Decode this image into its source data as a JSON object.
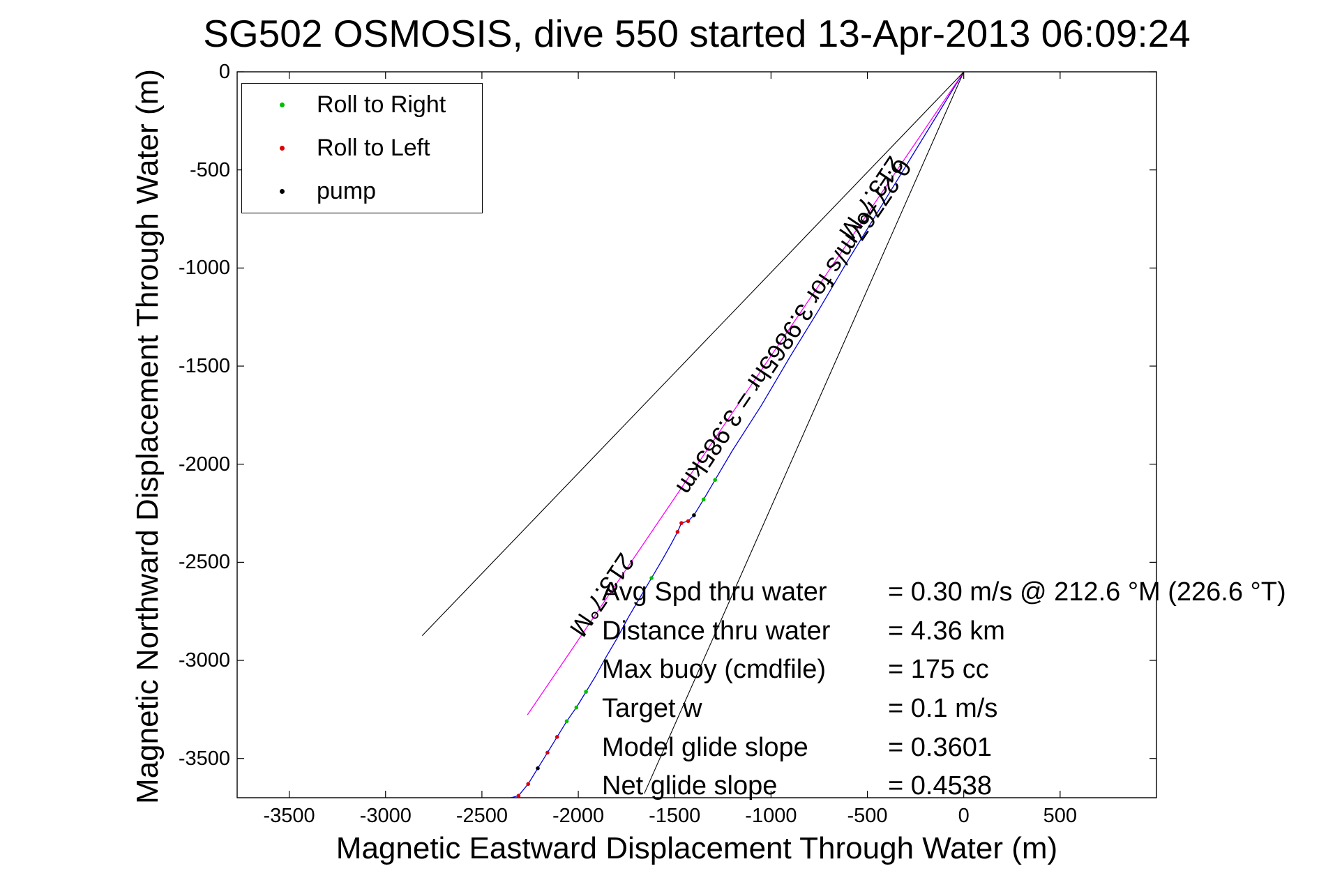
{
  "title": "SG502 OSMOSIS, dive 550 started 13-Apr-2013 06:09:24",
  "chart_data": {
    "type": "line",
    "title": "SG502 OSMOSIS, dive 550 started 13-Apr-2013 06:09:24",
    "xlabel": "Magnetic Eastward Displacement Through Water (m)",
    "ylabel": "Magnetic Northward Displacement Through Water (m)",
    "xlim": [
      -3770,
      1000
    ],
    "ylim": [
      -3700,
      0
    ],
    "grid": false,
    "legend_position": "top-left-inside",
    "xticks": [
      -3500,
      -3000,
      -2500,
      -2000,
      -1500,
      -1000,
      -500,
      0,
      500
    ],
    "yticks": [
      0,
      -500,
      -1000,
      -1500,
      -2000,
      -2500,
      -3000,
      -3500
    ],
    "legend": [
      {
        "label": "Roll to Right",
        "color": "#00bf00"
      },
      {
        "label": "Roll to Left",
        "color": "#e00000"
      },
      {
        "label": "pump",
        "color": "#000000"
      }
    ],
    "series": [
      {
        "name": "track-through-water",
        "color": "#0000e0",
        "width": 1.3,
        "points": [
          [
            0,
            0
          ],
          [
            -150,
            -240
          ],
          [
            -300,
            -480
          ],
          [
            -450,
            -720
          ],
          [
            -600,
            -960
          ],
          [
            -750,
            -1210
          ],
          [
            -900,
            -1450
          ],
          [
            -1050,
            -1700
          ],
          [
            -1200,
            -1930
          ],
          [
            -1290,
            -2080
          ],
          [
            -1350,
            -2180
          ],
          [
            -1400,
            -2260
          ],
          [
            -1430,
            -2290
          ],
          [
            -1465,
            -2300
          ],
          [
            -1485,
            -2345
          ],
          [
            -1520,
            -2410
          ],
          [
            -1560,
            -2480
          ],
          [
            -1620,
            -2580
          ],
          [
            -1680,
            -2680
          ],
          [
            -1740,
            -2780
          ],
          [
            -1800,
            -2890
          ],
          [
            -1860,
            -2990
          ],
          [
            -1910,
            -3080
          ],
          [
            -1960,
            -3160
          ],
          [
            -2010,
            -3240
          ],
          [
            -2060,
            -3310
          ],
          [
            -2110,
            -3390
          ],
          [
            -2160,
            -3470
          ],
          [
            -2210,
            -3550
          ],
          [
            -2260,
            -3630
          ],
          [
            -2310,
            -3690
          ],
          [
            -2350,
            -3700
          ]
        ]
      },
      {
        "name": "course-made-good-line",
        "color": "#ff00ff",
        "width": 1.3,
        "points": [
          [
            0,
            0
          ],
          [
            -2264,
            -3278
          ]
        ]
      },
      {
        "name": "bearing-bound-left",
        "color": "#000000",
        "width": 1.1,
        "points": [
          [
            0,
            0
          ],
          [
            -2810,
            -2874
          ]
        ]
      },
      {
        "name": "bearing-bound-right",
        "color": "#000000",
        "width": 1.1,
        "points": [
          [
            0,
            0
          ],
          [
            -1657,
            -3678
          ]
        ]
      }
    ],
    "markers": [
      {
        "x": -1290,
        "y": -2080,
        "color": "#00bf00",
        "kind": "roll-right"
      },
      {
        "x": -1350,
        "y": -2180,
        "color": "#00bf00",
        "kind": "roll-right"
      },
      {
        "x": -1620,
        "y": -2580,
        "color": "#00bf00",
        "kind": "roll-right"
      },
      {
        "x": -1960,
        "y": -3160,
        "color": "#00bf00",
        "kind": "roll-right"
      },
      {
        "x": -2010,
        "y": -3240,
        "color": "#00bf00",
        "kind": "roll-right"
      },
      {
        "x": -2060,
        "y": -3310,
        "color": "#00bf00",
        "kind": "roll-right"
      },
      {
        "x": -1430,
        "y": -2290,
        "color": "#e00000",
        "kind": "roll-left"
      },
      {
        "x": -1465,
        "y": -2300,
        "color": "#e00000",
        "kind": "roll-left"
      },
      {
        "x": -1485,
        "y": -2345,
        "color": "#e00000",
        "kind": "roll-left"
      },
      {
        "x": -2110,
        "y": -3390,
        "color": "#e00000",
        "kind": "roll-left"
      },
      {
        "x": -2160,
        "y": -3470,
        "color": "#e00000",
        "kind": "roll-left"
      },
      {
        "x": -2260,
        "y": -3630,
        "color": "#e00000",
        "kind": "roll-left"
      },
      {
        "x": -2310,
        "y": -3690,
        "color": "#e00000",
        "kind": "roll-left"
      },
      {
        "x": -1400,
        "y": -2260,
        "color": "#000000",
        "kind": "pump"
      },
      {
        "x": -2210,
        "y": -3550,
        "color": "#000000",
        "kind": "pump"
      }
    ],
    "rotated_labels": [
      {
        "text": "213.7°M",
        "x": -480,
        "y": -643,
        "rot": 124
      },
      {
        "text": "0.27767m/s for 3.9865hr = 3.985km",
        "x": -882,
        "y": -1300,
        "rot": 124
      },
      {
        "text": "213.7°M",
        "x": -1877,
        "y": -2666,
        "rot": 124
      }
    ],
    "annotations": [
      {
        "label": "Avg Spd thru water",
        "value": "=  0.30 m/s @ 212.6 °M (226.6 °T)"
      },
      {
        "label": "Distance thru water",
        "value": "=  4.36 km"
      },
      {
        "label": "Max buoy (cmdfile)",
        "value": "= 175 cc"
      },
      {
        "label": "Target w",
        "value": "= 0.1 m/s"
      },
      {
        "label": "Model glide slope",
        "value": "= 0.3601"
      },
      {
        "label": "Net glide slope",
        "value": "= 0.4538"
      }
    ]
  }
}
